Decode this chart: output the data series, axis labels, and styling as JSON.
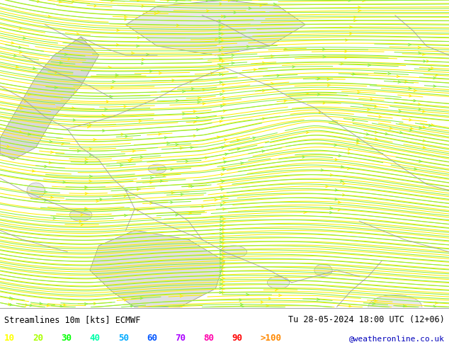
{
  "title_left": "Streamlines 10m [kts] ECMWF",
  "title_right": "Tu 28-05-2024 18:00 UTC (12+06)",
  "watermark": "@weatheronline.co.uk",
  "legend_values": [
    "10",
    "20",
    "30",
    "40",
    "50",
    "60",
    "70",
    "80",
    "90",
    ">100"
  ],
  "legend_colors": [
    "#ffff00",
    "#aaff00",
    "#00ff00",
    "#00ffaa",
    "#00aaff",
    "#0055ff",
    "#aa00ff",
    "#ff00aa",
    "#ff0000",
    "#ff8800"
  ],
  "land_color": "#bbffbb",
  "mountain_color_1": "#e8e8e8",
  "mountain_color_2": "#d8d8d8",
  "mountain_color_3": "#f0f0f0",
  "border_color": "#999999",
  "stream_color_yellow": "#ffee00",
  "stream_color_green": "#88ee44",
  "fig_width": 6.34,
  "fig_height": 4.9,
  "dpi": 100,
  "bottom_bar_height": 0.115,
  "bottom_bar_color": "#ffffff"
}
